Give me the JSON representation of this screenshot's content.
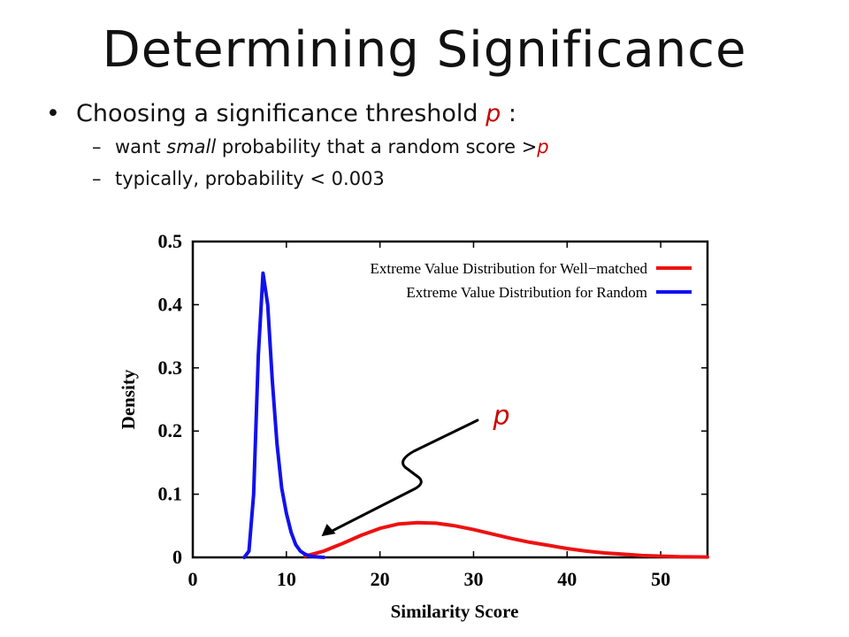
{
  "slide": {
    "title": "Determining Significance",
    "bullet_main": {
      "text": "Choosing a significance threshold ",
      "var": "p",
      "suffix": " :"
    },
    "sub1": {
      "dash": "–",
      "pre": "want ",
      "em": "small",
      "post": " probability that a random score >",
      "var": "p"
    },
    "sub2": {
      "dash": "–",
      "text": "typically, probability < 0.003"
    },
    "bullet_symbol": "•"
  },
  "chart_data": {
    "type": "line",
    "xlabel": "Similarity Score",
    "ylabel": "Density",
    "xlim": [
      0,
      55
    ],
    "ylim": [
      0,
      0.5
    ],
    "x_ticks": [
      0,
      10,
      20,
      30,
      40,
      50
    ],
    "y_ticks": [
      0,
      0.1,
      0.2,
      0.3,
      0.4,
      0.5
    ],
    "x_tick_labels": [
      "0",
      "10",
      "20",
      "30",
      "40",
      "50"
    ],
    "y_tick_labels": [
      "0",
      "0.1",
      "0.2",
      "0.3",
      "0.4",
      "0.5"
    ],
    "grid": false,
    "legend_position": "top-right",
    "series": [
      {
        "name": "Extreme Value Distribution for Well−matched",
        "color": "#ee1111",
        "x": [
          12,
          14,
          16,
          18,
          20,
          22,
          24,
          26,
          28,
          30,
          32,
          34,
          36,
          38,
          40,
          42,
          44,
          46,
          48,
          50,
          52,
          55
        ],
        "y": [
          0.002,
          0.01,
          0.022,
          0.035,
          0.046,
          0.053,
          0.055,
          0.054,
          0.05,
          0.044,
          0.037,
          0.03,
          0.024,
          0.019,
          0.014,
          0.01,
          0.007,
          0.005,
          0.003,
          0.002,
          0.001,
          0.0005
        ]
      },
      {
        "name": "Extreme Value Distribution for Random",
        "color": "#1111ee",
        "x": [
          5.5,
          6.0,
          6.5,
          7.0,
          7.5,
          8.0,
          8.5,
          9.0,
          9.5,
          10.0,
          10.5,
          11.0,
          11.5,
          12.0,
          12.5,
          13.0,
          14.0
        ],
        "y": [
          0.0,
          0.01,
          0.1,
          0.32,
          0.45,
          0.4,
          0.28,
          0.18,
          0.11,
          0.07,
          0.04,
          0.02,
          0.01,
          0.005,
          0.002,
          0.001,
          0.0
        ]
      }
    ],
    "annotations": [
      {
        "text": "p",
        "color": "#cc0000",
        "arrow_target": {
          "x": 13,
          "y": 0.025
        }
      }
    ]
  }
}
